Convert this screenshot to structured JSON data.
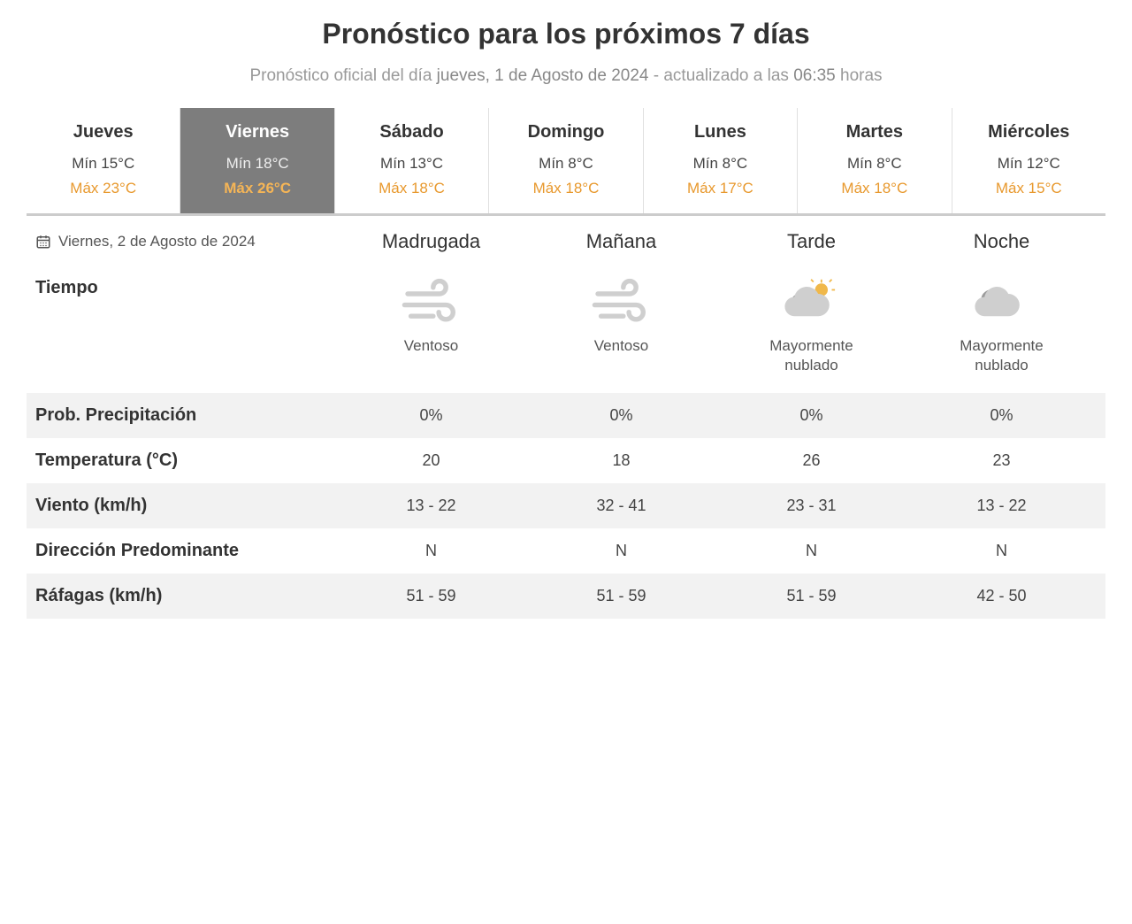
{
  "header": {
    "title": "Pronóstico para los próximos 7 días",
    "subtitle_prefix": "Pronóstico oficial del día ",
    "subtitle_date": "jueves, 1 de Agosto de 2024",
    "subtitle_mid": " - actualizado a las ",
    "subtitle_time": "06:35",
    "subtitle_suffix": " horas"
  },
  "days": [
    {
      "name": "Jueves",
      "min": "Mín 15°C",
      "max": "Máx 23°C",
      "selected": false
    },
    {
      "name": "Viernes",
      "min": "Mín 18°C",
      "max": "Máx 26°C",
      "selected": true
    },
    {
      "name": "Sábado",
      "min": "Mín 13°C",
      "max": "Máx 18°C",
      "selected": false
    },
    {
      "name": "Domingo",
      "min": "Mín 8°C",
      "max": "Máx 18°C",
      "selected": false
    },
    {
      "name": "Lunes",
      "min": "Mín 8°C",
      "max": "Máx 17°C",
      "selected": false
    },
    {
      "name": "Martes",
      "min": "Mín 8°C",
      "max": "Máx 18°C",
      "selected": false
    },
    {
      "name": "Miércoles",
      "min": "Mín 12°C",
      "max": "Máx 15°C",
      "selected": false
    }
  ],
  "detail": {
    "date_label": "Viernes, 2 de Agosto de 2024",
    "periods": [
      "Madrugada",
      "Mañana",
      "Tarde",
      "Noche"
    ],
    "rows": {
      "tiempo_label": "Tiempo",
      "precip_label": "Prob. Precipitación",
      "temp_label": "Temperatura (°C)",
      "viento_label": "Viento (km/h)",
      "dir_label": "Dirección Predominante",
      "rafagas_label": "Ráfagas (km/h)"
    },
    "weather": [
      {
        "icon": "wind",
        "desc": "Ventoso"
      },
      {
        "icon": "wind",
        "desc": "Ventoso"
      },
      {
        "icon": "cloudy-day",
        "desc": "Mayormente nublado"
      },
      {
        "icon": "cloudy-night",
        "desc": "Mayormente nublado"
      }
    ],
    "precip": [
      "0%",
      "0%",
      "0%",
      "0%"
    ],
    "temp": [
      "20",
      "18",
      "26",
      "23"
    ],
    "viento": [
      "13 - 22",
      "32 - 41",
      "23 - 31",
      "13 - 22"
    ],
    "dir": [
      "N",
      "N",
      "N",
      "N"
    ],
    "rafagas": [
      "51 - 59",
      "51 - 59",
      "51 - 59",
      "42 - 50"
    ]
  },
  "colors": {
    "max_color": "#e8992e",
    "selected_bg": "#7d7d7d",
    "alt_row_bg": "#f2f2f2",
    "icon_gray": "#cfcfcf",
    "icon_dark": "#9b9b9b",
    "sun_color": "#f0b84a"
  }
}
